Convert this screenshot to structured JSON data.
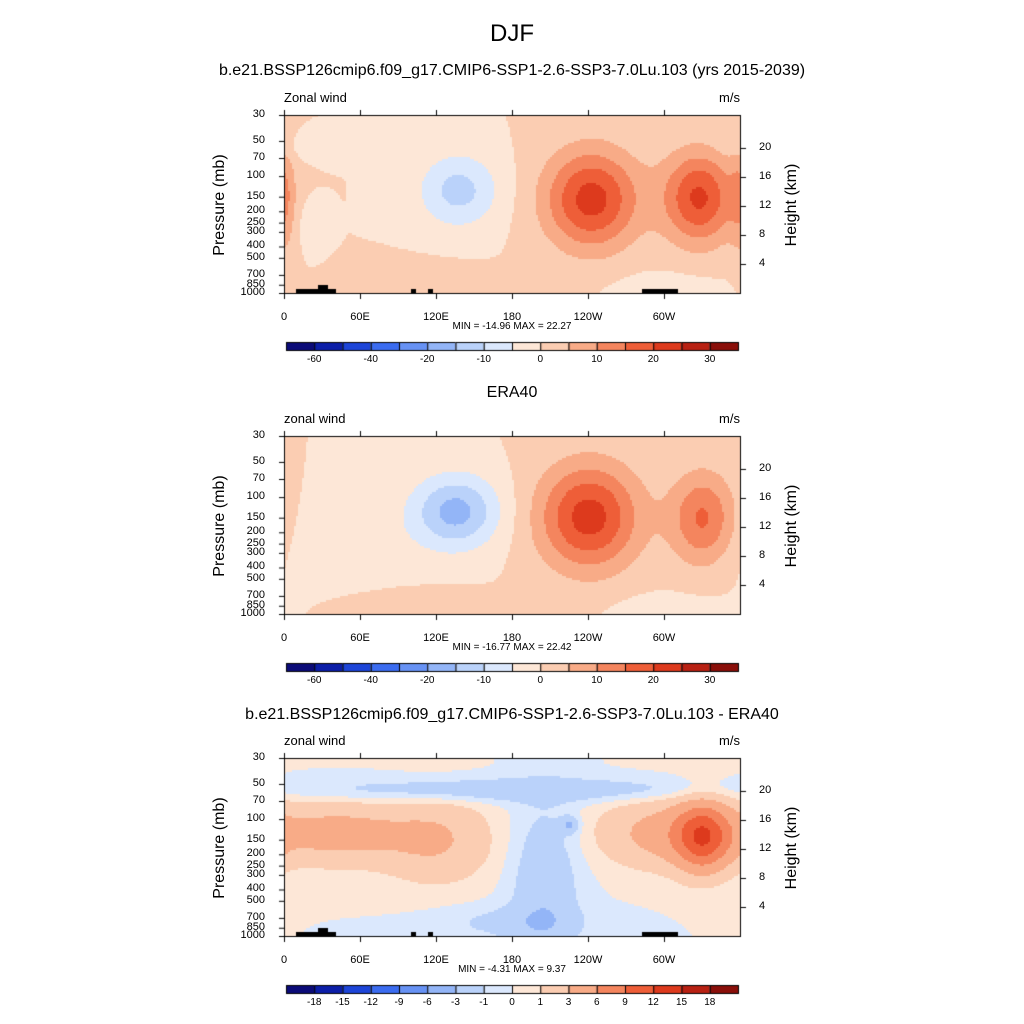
{
  "title": "DJF",
  "chart_data": [
    {
      "type": "heatmap",
      "title": "b.e21.BSSP126cmip6.f09_g17.CMIP6-SSP1-2.6-SSP3-7.0Lu.103 (yrs 2015-2039)",
      "left_label": "Zonal wind",
      "units": "m/s",
      "ylabel": "Pressure (mb)",
      "y2label": "Height (km)",
      "x_ticks": [
        "0",
        "60E",
        "120E",
        "180",
        "120W",
        "60W"
      ],
      "y_ticks": [
        "30",
        "50",
        "70",
        "100",
        "150",
        "200",
        "250",
        "300",
        "400",
        "500",
        "700",
        "850",
        "1000"
      ],
      "y2_ticks": [
        "20",
        "16",
        "12",
        "8",
        "4"
      ],
      "stats": "MIN = -14.96  MAX =  22.27",
      "colorbar_labels": [
        "-60",
        "-40",
        "-20",
        "-10",
        "0",
        "10",
        "20",
        "30"
      ],
      "levels": [
        -70,
        -60,
        -50,
        -40,
        -30,
        -20,
        -15,
        -10,
        -5,
        0,
        5,
        10,
        15,
        20,
        25,
        30,
        35
      ],
      "min": -14.96,
      "max": 22.27,
      "features": [
        {
          "lon": 137,
          "p": 130,
          "value": -12,
          "dlon": 22,
          "dlogp": 0.22
        },
        {
          "lon": 242,
          "p": 155,
          "value": 22.27,
          "dlon": 26,
          "dlogp": 0.3
        },
        {
          "lon": 327,
          "p": 150,
          "value": 21,
          "dlon": 20,
          "dlogp": 0.28
        },
        {
          "lon": 0,
          "p": 150,
          "value": 7,
          "dlon": 6,
          "dlogp": 0.35
        },
        {
          "lon": 20,
          "p": 55,
          "value": -3,
          "dlon": 25,
          "dlogp": 0.08
        },
        {
          "lon": 105,
          "p": 850,
          "value": 4,
          "dlon": 35,
          "dlogp": 0.12
        },
        {
          "lon": 300,
          "p": 900,
          "value": -3,
          "dlon": 30,
          "dlogp": 0.1
        },
        {
          "lon": 20,
          "p": 250,
          "value": -3,
          "dlon": 8,
          "dlogp": 0.15
        }
      ]
    },
    {
      "type": "heatmap",
      "title": "ERA40",
      "left_label": "zonal wind",
      "units": "m/s",
      "ylabel": "Pressure (mb)",
      "y2label": "Height (km)",
      "x_ticks": [
        "0",
        "60E",
        "120E",
        "180",
        "120W",
        "60W"
      ],
      "y_ticks": [
        "30",
        "50",
        "70",
        "100",
        "150",
        "200",
        "250",
        "300",
        "400",
        "500",
        "700",
        "850",
        "1000"
      ],
      "y2_ticks": [
        "20",
        "16",
        "12",
        "8",
        "4"
      ],
      "stats": "MIN = -16.77  MAX =  22.42",
      "colorbar_labels": [
        "-60",
        "-40",
        "-20",
        "-10",
        "0",
        "10",
        "20",
        "30"
      ],
      "levels": [
        -70,
        -60,
        -50,
        -40,
        -30,
        -20,
        -15,
        -10,
        -5,
        0,
        5,
        10,
        15,
        20,
        25,
        30,
        35
      ],
      "min": -16.77,
      "max": 22.42,
      "features": [
        {
          "lon": 135,
          "p": 130,
          "value": -16.77,
          "dlon": 24,
          "dlogp": 0.22
        },
        {
          "lon": 240,
          "p": 145,
          "value": 22.42,
          "dlon": 28,
          "dlogp": 0.32
        },
        {
          "lon": 330,
          "p": 150,
          "value": 16,
          "dlon": 18,
          "dlogp": 0.28
        },
        {
          "lon": 50,
          "p": 250,
          "value": -3,
          "dlon": 45,
          "dlogp": 0.3
        },
        {
          "lon": 100,
          "p": 900,
          "value": 4,
          "dlon": 40,
          "dlogp": 0.12
        },
        {
          "lon": 300,
          "p": 920,
          "value": -3,
          "dlon": 30,
          "dlogp": 0.1
        }
      ]
    },
    {
      "type": "heatmap",
      "title": "b.e21.BSSP126cmip6.f09_g17.CMIP6-SSP1-2.6-SSP3-7.0Lu.103 - ERA40",
      "left_label": "zonal wind",
      "units": "m/s",
      "ylabel": "Pressure (mb)",
      "y2label": "Height (km)",
      "x_ticks": [
        "0",
        "60E",
        "120E",
        "180",
        "120W",
        "60W"
      ],
      "y_ticks": [
        "30",
        "50",
        "70",
        "100",
        "150",
        "200",
        "250",
        "300",
        "400",
        "500",
        "700",
        "850",
        "1000"
      ],
      "y2_ticks": [
        "20",
        "16",
        "12",
        "8",
        "4"
      ],
      "stats": "MIN =  -4.31  MAX =   9.37",
      "colorbar_labels": [
        "-18",
        "-15",
        "-12",
        "-9",
        "-6",
        "-3",
        "-1",
        "0",
        "1",
        "3",
        "6",
        "9",
        "12",
        "15",
        "18"
      ],
      "levels": [
        -21,
        -18,
        -15,
        -12,
        -9,
        -6,
        -3,
        -1,
        0,
        1,
        3,
        6,
        9,
        12,
        15,
        18,
        21
      ],
      "min": -4.31,
      "max": 9.37,
      "features": [
        {
          "lon": 40,
          "p": 130,
          "value": 4,
          "dlon": 40,
          "dlogp": 0.18
        },
        {
          "lon": 120,
          "p": 150,
          "value": 3,
          "dlon": 30,
          "dlogp": 0.25
        },
        {
          "lon": 330,
          "p": 140,
          "value": 9.37,
          "dlon": 15,
          "dlogp": 0.2
        },
        {
          "lon": 300,
          "p": 130,
          "value": 4,
          "dlon": 35,
          "dlogp": 0.2
        },
        {
          "lon": 205,
          "p": 400,
          "value": -2.5,
          "dlon": 18,
          "dlogp": 0.5
        },
        {
          "lon": 180,
          "p": 55,
          "value": -2.5,
          "dlon": 120,
          "dlogp": 0.07
        },
        {
          "lon": 180,
          "p": 750,
          "value": -1.5,
          "dlon": 40,
          "dlogp": 0.1
        },
        {
          "lon": 225,
          "p": 110,
          "value": -3,
          "dlon": 5,
          "dlogp": 0.05
        }
      ]
    }
  ],
  "colors": {
    "colormap": [
      "#0b0b78",
      "#0c1ea8",
      "#1d45d8",
      "#3b6cf0",
      "#6792f4",
      "#93b5f7",
      "#bad2fa",
      "#dbe8fd",
      "#fde7d7",
      "#fbcdb2",
      "#f8ab87",
      "#f4855e",
      "#ee5e38",
      "#dd3a1d",
      "#b82113",
      "#8a0f0a"
    ]
  }
}
